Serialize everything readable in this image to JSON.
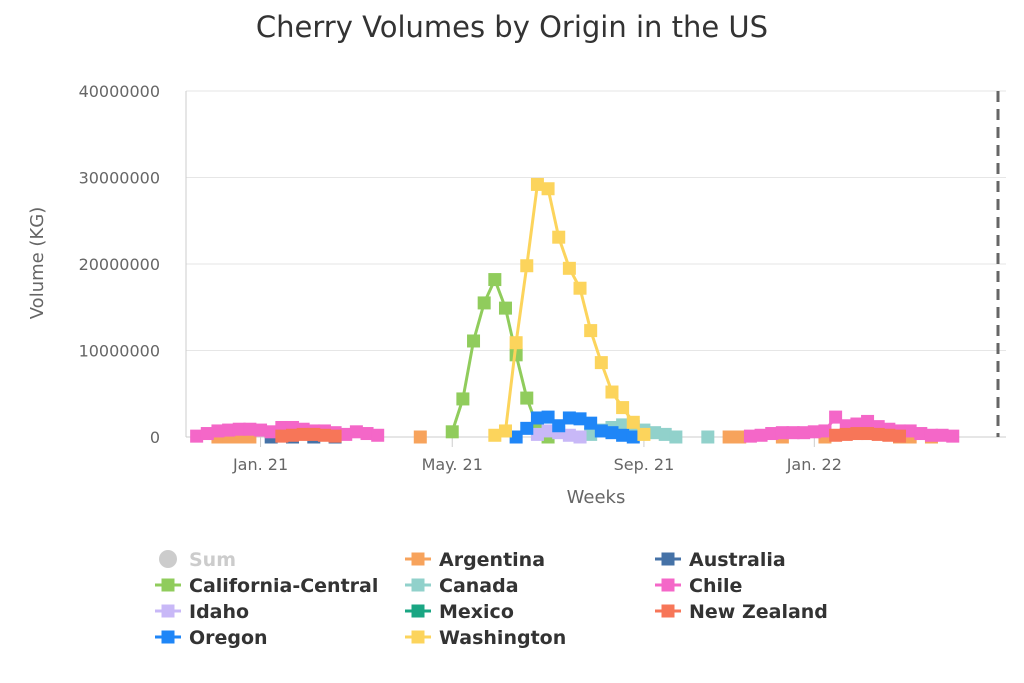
{
  "chart_data": {
    "type": "line",
    "title": "Cherry Volumes by Origin in the US",
    "xlabel": "Weeks",
    "ylabel": "Volume (KG)",
    "ylim": [
      0,
      40000000
    ],
    "y_ticks": [
      0,
      10000000,
      20000000,
      30000000,
      40000000
    ],
    "y_tick_labels": [
      "0",
      "10000000",
      "20000000",
      "30000000",
      "40000000"
    ],
    "x_range": [
      "2020-11-30",
      "2022-05-23"
    ],
    "x_ticks": [
      {
        "date": "2021-01-18",
        "label": "Jan. 21"
      },
      {
        "date": "2021-05-24",
        "label": "May. 21"
      },
      {
        "date": "2021-09-27",
        "label": "Sep. 21"
      },
      {
        "date": "2022-01-17",
        "label": "Jan. 22"
      }
    ],
    "plot_end_marker": "2022-05-23",
    "grid": true,
    "legend_position": "bottom",
    "series": [
      {
        "name": "Sum",
        "color": "#cccccc",
        "marker": "circle",
        "visible": false,
        "points": []
      },
      {
        "name": "Argentina",
        "color": "#f7a35c",
        "marker": "square",
        "visible": true,
        "points": [
          [
            "2020-12-21",
            0
          ],
          [
            "2020-12-28",
            0
          ],
          [
            "2021-01-04",
            0
          ],
          [
            "2021-01-11",
            0
          ],
          [
            "2021-05-03",
            0
          ],
          [
            "2021-11-22",
            0
          ],
          [
            "2021-11-29",
            0
          ],
          [
            "2021-12-27",
            0
          ],
          [
            "2022-01-24",
            0
          ],
          [
            "2022-03-14",
            0
          ],
          [
            "2022-03-21",
            0
          ],
          [
            "2022-04-04",
            0
          ]
        ]
      },
      {
        "name": "Australia",
        "color": "#4572a7",
        "marker": "square",
        "visible": true,
        "points": [
          [
            "2021-01-25",
            0
          ],
          [
            "2021-02-08",
            0
          ],
          [
            "2021-02-22",
            0
          ],
          [
            "2021-03-08",
            0
          ]
        ]
      },
      {
        "name": "California-Central",
        "color": "#90cc5c",
        "marker": "square",
        "visible": true,
        "points": [
          [
            "2021-05-24",
            600000
          ],
          [
            "2021-05-31",
            4400000
          ],
          [
            "2021-06-07",
            11100000
          ],
          [
            "2021-06-14",
            15500000
          ],
          [
            "2021-06-21",
            18200000
          ],
          [
            "2021-06-28",
            14900000
          ],
          [
            "2021-07-05",
            9500000
          ],
          [
            "2021-07-12",
            4500000
          ],
          [
            "2021-07-19",
            1200000
          ],
          [
            "2021-07-26",
            0
          ]
        ]
      },
      {
        "name": "Canada",
        "color": "#91d1cb",
        "marker": "square",
        "visible": true,
        "points": [
          [
            "2021-08-16",
            0
          ],
          [
            "2021-08-23",
            300000
          ],
          [
            "2021-08-30",
            800000
          ],
          [
            "2021-09-06",
            1100000
          ],
          [
            "2021-09-13",
            1400000
          ],
          [
            "2021-09-20",
            1200000
          ],
          [
            "2021-09-27",
            800000
          ],
          [
            "2021-10-04",
            500000
          ],
          [
            "2021-10-11",
            300000
          ],
          [
            "2021-10-18",
            0
          ],
          [
            "2021-11-08",
            0
          ]
        ]
      },
      {
        "name": "Chile",
        "color": "#f467c8",
        "marker": "square",
        "visible": true,
        "points": [
          [
            "2020-12-07",
            100000
          ],
          [
            "2020-12-14",
            400000
          ],
          [
            "2020-12-21",
            700000
          ],
          [
            "2020-12-28",
            800000
          ],
          [
            "2021-01-04",
            900000
          ],
          [
            "2021-01-11",
            900000
          ],
          [
            "2021-01-18",
            800000
          ],
          [
            "2021-01-25",
            600000
          ],
          [
            "2021-02-01",
            1100000
          ],
          [
            "2021-02-08",
            1100000
          ],
          [
            "2021-02-15",
            900000
          ],
          [
            "2021-02-22",
            700000
          ],
          [
            "2021-03-01",
            700000
          ],
          [
            "2021-03-08",
            500000
          ],
          [
            "2021-03-15",
            300000
          ],
          [
            "2021-03-22",
            600000
          ],
          [
            "2021-03-29",
            400000
          ],
          [
            "2021-04-05",
            200000
          ],
          [
            "2021-12-06",
            100000
          ],
          [
            "2021-12-13",
            200000
          ],
          [
            "2021-12-20",
            400000
          ],
          [
            "2021-12-27",
            500000
          ],
          [
            "2022-01-03",
            500000
          ],
          [
            "2022-01-10",
            500000
          ],
          [
            "2022-01-17",
            600000
          ],
          [
            "2022-01-24",
            700000
          ],
          [
            "2022-01-31",
            2300000
          ],
          [
            "2022-02-07",
            1300000
          ],
          [
            "2022-02-14",
            1500000
          ],
          [
            "2022-02-21",
            1800000
          ],
          [
            "2022-02-28",
            1200000
          ],
          [
            "2022-03-07",
            900000
          ],
          [
            "2022-03-14",
            700000
          ],
          [
            "2022-03-21",
            700000
          ],
          [
            "2022-03-28",
            400000
          ],
          [
            "2022-04-04",
            200000
          ],
          [
            "2022-04-11",
            200000
          ],
          [
            "2022-04-18",
            100000
          ]
        ]
      },
      {
        "name": "Idaho",
        "color": "#c8b8f7",
        "marker": "square",
        "visible": true,
        "points": [
          [
            "2021-07-19",
            300000
          ],
          [
            "2021-07-26",
            700000
          ],
          [
            "2021-08-02",
            500000
          ],
          [
            "2021-08-09",
            200000
          ],
          [
            "2021-08-16",
            0
          ]
        ]
      },
      {
        "name": "Mexico",
        "color": "#1aa683",
        "marker": "square",
        "visible": true,
        "points": []
      },
      {
        "name": "New Zealand",
        "color": "#f77658",
        "marker": "square",
        "visible": true,
        "points": [
          [
            "2021-02-01",
            100000
          ],
          [
            "2021-02-08",
            200000
          ],
          [
            "2021-02-15",
            300000
          ],
          [
            "2021-02-22",
            300000
          ],
          [
            "2021-03-01",
            200000
          ],
          [
            "2021-03-08",
            100000
          ],
          [
            "2022-01-31",
            200000
          ],
          [
            "2022-02-07",
            300000
          ],
          [
            "2022-02-14",
            400000
          ],
          [
            "2022-02-21",
            400000
          ],
          [
            "2022-02-28",
            300000
          ],
          [
            "2022-03-07",
            200000
          ],
          [
            "2022-03-14",
            100000
          ]
        ]
      },
      {
        "name": "Oregon",
        "color": "#1f86f7",
        "marker": "square",
        "visible": true,
        "points": [
          [
            "2021-07-05",
            0
          ],
          [
            "2021-07-12",
            1000000
          ],
          [
            "2021-07-19",
            2200000
          ],
          [
            "2021-07-26",
            2300000
          ],
          [
            "2021-08-02",
            1300000
          ],
          [
            "2021-08-09",
            2200000
          ],
          [
            "2021-08-16",
            2100000
          ],
          [
            "2021-08-23",
            1600000
          ],
          [
            "2021-08-30",
            700000
          ],
          [
            "2021-09-06",
            500000
          ],
          [
            "2021-09-13",
            200000
          ],
          [
            "2021-09-20",
            0
          ]
        ]
      },
      {
        "name": "Washington",
        "color": "#fcd45c",
        "marker": "square",
        "visible": true,
        "points": [
          [
            "2021-06-21",
            200000
          ],
          [
            "2021-06-28",
            700000
          ],
          [
            "2021-07-05",
            10900000
          ],
          [
            "2021-07-12",
            19800000
          ],
          [
            "2021-07-19",
            29200000
          ],
          [
            "2021-07-26",
            28700000
          ],
          [
            "2021-08-02",
            23100000
          ],
          [
            "2021-08-09",
            19500000
          ],
          [
            "2021-08-16",
            17200000
          ],
          [
            "2021-08-23",
            12300000
          ],
          [
            "2021-08-30",
            8600000
          ],
          [
            "2021-09-06",
            5200000
          ],
          [
            "2021-09-13",
            3400000
          ],
          [
            "2021-09-20",
            1700000
          ],
          [
            "2021-09-27",
            300000
          ]
        ]
      }
    ]
  }
}
